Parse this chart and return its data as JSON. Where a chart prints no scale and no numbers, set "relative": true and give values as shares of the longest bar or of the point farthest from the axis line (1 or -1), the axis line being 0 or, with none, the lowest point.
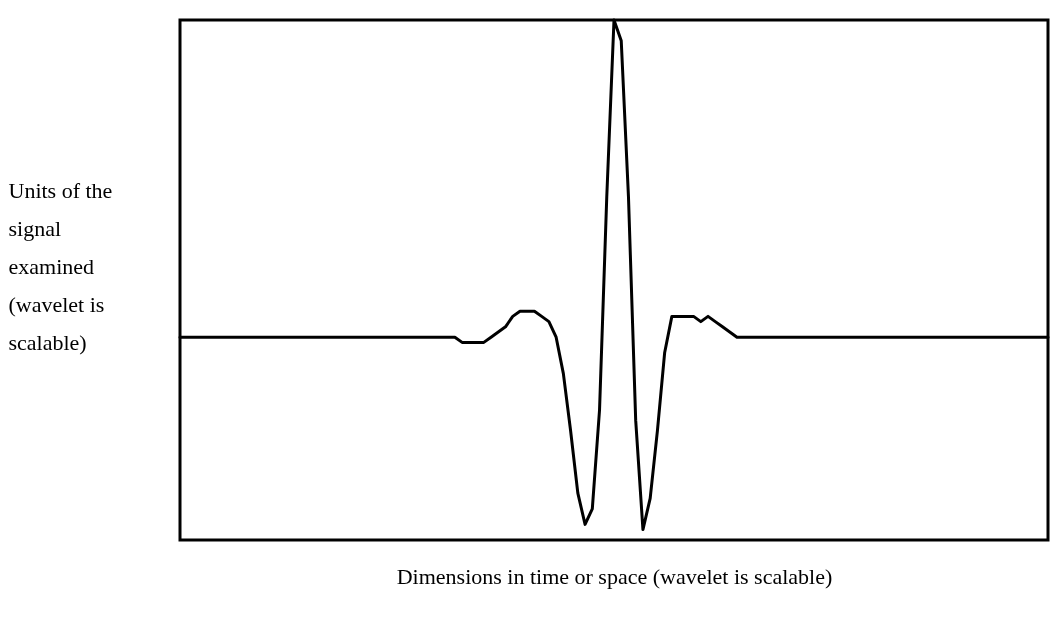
{
  "chart_data": {
    "type": "line",
    "relative": true,
    "xlabel": "Dimensions in time or space (wavelet is scalable)",
    "ylabel": "Units of the signal examined (wavelet is scalable)",
    "color": "#000000",
    "categories": [
      null,
      null,
      null,
      null,
      null,
      null,
      null,
      null,
      null,
      null,
      null,
      null,
      null,
      null,
      null,
      null,
      null,
      null,
      null,
      null,
      null,
      null,
      null,
      null,
      null,
      null,
      null,
      null,
      null,
      null,
      null,
      null,
      null,
      null,
      null,
      null,
      null,
      null,
      null,
      null,
      null,
      null,
      null,
      null,
      null,
      null,
      null,
      null,
      null,
      null,
      null,
      null,
      null,
      null,
      null,
      null,
      null,
      null,
      null,
      null,
      null,
      null,
      null,
      null,
      null,
      null,
      null,
      null,
      null,
      null,
      null,
      null,
      null,
      null,
      null,
      null,
      null,
      null,
      null,
      null,
      null,
      null,
      null,
      null,
      null,
      null,
      null,
      null,
      null,
      null,
      null,
      null,
      null,
      null,
      null,
      null,
      null,
      null,
      null,
      null,
      null,
      null,
      null,
      null,
      null,
      null,
      null,
      null,
      null,
      null,
      null,
      null,
      null,
      null,
      null,
      null,
      null,
      null,
      null,
      null,
      null
    ],
    "values": [
      0.39,
      0.39,
      0.39,
      0.39,
      0.39,
      0.39,
      0.39,
      0.39,
      0.39,
      0.39,
      0.39,
      0.39,
      0.39,
      0.39,
      0.39,
      0.39,
      0.39,
      0.39,
      0.39,
      0.39,
      0.39,
      0.39,
      0.39,
      0.39,
      0.39,
      0.39,
      0.39,
      0.39,
      0.39,
      0.39,
      0.39,
      0.39,
      0.39,
      0.39,
      0.39,
      0.39,
      0.39,
      0.39,
      0.39,
      0.38,
      0.38,
      0.38,
      0.38,
      0.39,
      0.4,
      0.41,
      0.43,
      0.44,
      0.44,
      0.44,
      0.43,
      0.42,
      0.39,
      0.32,
      0.21,
      0.09,
      0.03,
      0.06,
      0.25,
      0.66,
      1,
      0.96,
      0.66,
      0.23,
      0.02,
      0.08,
      0.21,
      0.36,
      0.43,
      0.43,
      0.43,
      0.43,
      0.42,
      0.43,
      0.42,
      0.41,
      0.4,
      0.39,
      0.39,
      0.39,
      0.39,
      0.39,
      0.39,
      0.39,
      0.39,
      0.39,
      0.39,
      0.39,
      0.39,
      0.39,
      0.39,
      0.39,
      0.39,
      0.39,
      0.39,
      0.39,
      0.39,
      0.39,
      0.39,
      0.39,
      0.39,
      0.39,
      0.39,
      0.39,
      0.39,
      0.39,
      0.39,
      0.39,
      0.39,
      0.39,
      0.39,
      0.39,
      0.39,
      0.39,
      0.39,
      0.39,
      0.39,
      0.39,
      0.39,
      0.39,
      0.39
    ]
  }
}
